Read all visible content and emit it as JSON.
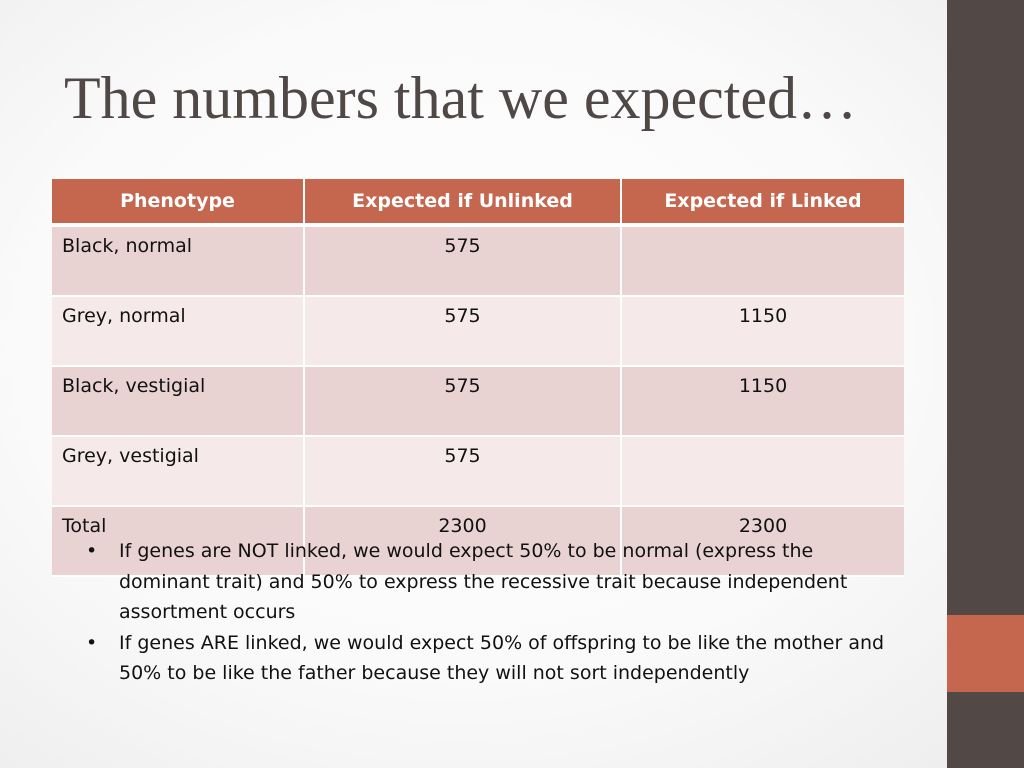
{
  "slide": {
    "title": "The numbers that we expected…"
  },
  "table": {
    "headers": [
      "Phenotype",
      "Expected if Unlinked",
      "Expected if Linked"
    ],
    "rows": [
      {
        "phenotype": "Black, normal",
        "unlinked": "575",
        "linked": ""
      },
      {
        "phenotype": "Grey, normal",
        "unlinked": "575",
        "linked": "1150"
      },
      {
        "phenotype": "Black, vestigial",
        "unlinked": "575",
        "linked": "1150"
      },
      {
        "phenotype": "Grey, vestigial",
        "unlinked": "575",
        "linked": ""
      },
      {
        "phenotype": "Total",
        "unlinked": "2300",
        "linked": "2300"
      }
    ]
  },
  "notes": {
    "bullet_char": "•",
    "items": [
      "If genes are NOT linked, we would expect 50% to be normal (express the dominant trait) and 50% to express the recessive trait because independent assortment occurs",
      "If genes ARE linked, we would expect 50% of offspring to be like the mother and 50% to be like the father because they will not sort independently"
    ]
  },
  "colors": {
    "accent": "#c5674f",
    "sidebar": "#524846",
    "title": "#4f4846",
    "row_dark": "#e9d3d2",
    "row_light": "#f5eae9"
  }
}
